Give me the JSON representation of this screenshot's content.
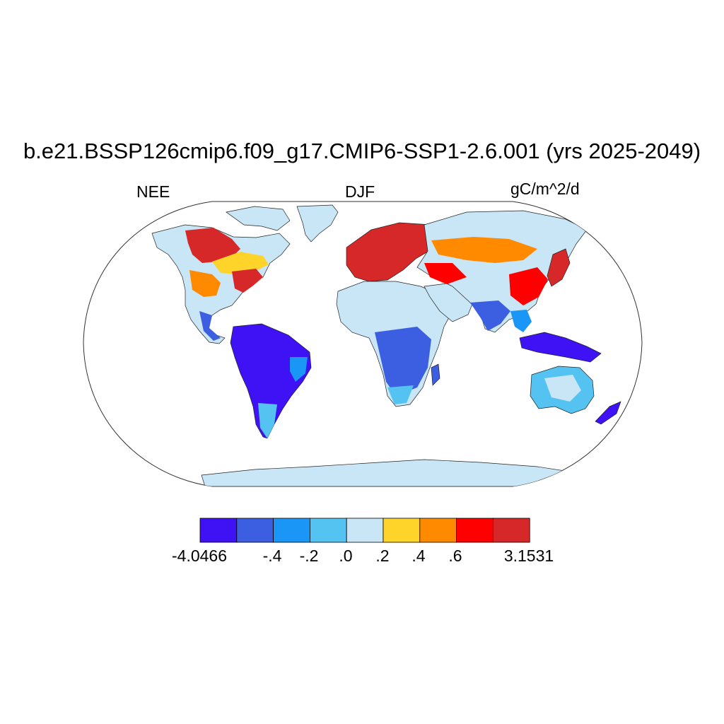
{
  "title": "b.e21.BSSP126cmip6.f09_g17.CMIP6-SSP1-2.6.001 (yrs 2025-2049)",
  "left_string": "NEE",
  "center_string": "DJF",
  "right_string": "gC/m^2/d",
  "projection": "Robinson",
  "colorbar": {
    "colors": [
      "#3e12f5",
      "#3c5ee0",
      "#1a96f6",
      "#55c3f2",
      "#c8e6f5",
      "#ffd42a",
      "#ff8a00",
      "#ff0000",
      "#d62828"
    ],
    "labels": [
      "-4.0466",
      "-.4",
      "-.2",
      ".0",
      ".2",
      ".4",
      ".6",
      "3.1531"
    ]
  },
  "regions": [
    {
      "name": "north-america-boreal",
      "color": "#d62828"
    },
    {
      "name": "eastern-us",
      "color": "#d62828"
    },
    {
      "name": "europe",
      "color": "#d62828"
    },
    {
      "name": "east-asia",
      "color": "#ff0000"
    },
    {
      "name": "amazon",
      "color": "#3e12f5"
    },
    {
      "name": "sahara",
      "color": "#c8e6f5"
    },
    {
      "name": "central-africa",
      "color": "#3c5ee0"
    },
    {
      "name": "australia",
      "color": "#55c3f2"
    },
    {
      "name": "antarctica",
      "color": "#c8e6f5"
    },
    {
      "name": "greenland",
      "color": "#c8e6f5"
    }
  ]
}
